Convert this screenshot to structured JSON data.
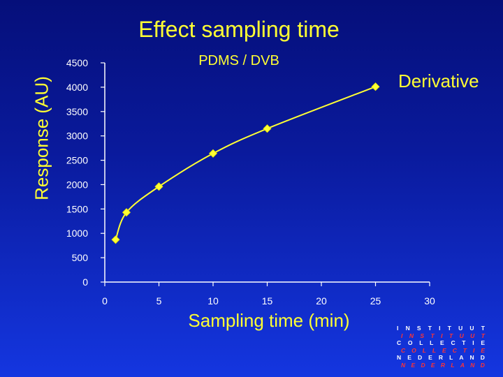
{
  "colors": {
    "accent": "#ffff33",
    "tick_text": "#ffffff",
    "logo_red": "#ff3333"
  },
  "chart_data": {
    "type": "line",
    "title": "Effect sampling time",
    "subtitle": "PDMS / DVB",
    "xlabel": "Sampling time (min)",
    "ylabel": "Response (AU)",
    "xlim": [
      0,
      30
    ],
    "ylim": [
      0,
      4500
    ],
    "x_ticks": [
      "0",
      "5",
      "10",
      "15",
      "20",
      "25",
      "30"
    ],
    "y_ticks": [
      "0",
      "500",
      "1000",
      "1500",
      "2000",
      "2500",
      "3000",
      "3500",
      "4000",
      "4500"
    ],
    "grid": false,
    "legend": "none",
    "series": [
      {
        "name": "Derivative",
        "x": [
          1,
          2,
          5,
          10,
          15,
          25
        ],
        "y": [
          870,
          1430,
          1960,
          2640,
          3150,
          4010
        ]
      }
    ]
  },
  "logo": {
    "lines": [
      {
        "text": "INSTITUUT",
        "style": "w"
      },
      {
        "text": "INSTITUUT",
        "style": "r"
      },
      {
        "text": "COLLECTIE",
        "style": "w"
      },
      {
        "text": "COLLECTIE",
        "style": "r"
      },
      {
        "text": "NEDERLAND",
        "style": "w"
      },
      {
        "text": "NEDERLAND",
        "style": "r"
      }
    ]
  }
}
